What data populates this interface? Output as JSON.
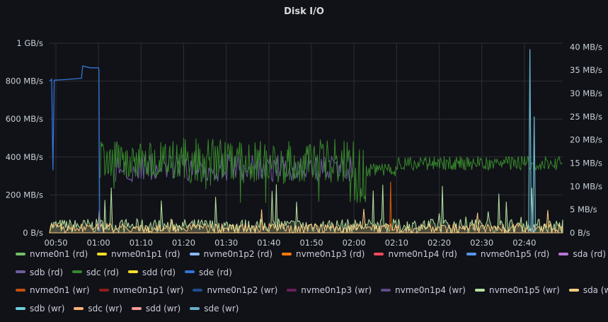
{
  "title": "Disk I/O",
  "chart_data": {
    "type": "line",
    "title": "Disk I/O",
    "x_ticks": [
      "00:50",
      "01:00",
      "01:10",
      "01:20",
      "01:30",
      "01:40",
      "01:50",
      "02:00",
      "02:10",
      "02:20",
      "02:30",
      "02:40"
    ],
    "x_range_minutes": [
      48.5,
      169
    ],
    "y_left": {
      "ticks": [
        "0 B/s",
        "200 MB/s",
        "400 MB/s",
        "600 MB/s",
        "800 MB/s",
        "1 GB/s"
      ],
      "values": [
        0,
        200,
        400,
        600,
        800,
        1000
      ],
      "range": [
        0,
        1000
      ]
    },
    "y_right": {
      "ticks": [
        "0 B/s",
        "5 MB/s",
        "10 MB/s",
        "15 MB/s",
        "20 MB/s",
        "25 MB/s",
        "30 MB/s",
        "35 MB/s",
        "40 MB/s"
      ],
      "values": [
        0,
        5,
        10,
        15,
        20,
        25,
        30,
        35,
        40
      ],
      "range": [
        0,
        40.8
      ]
    },
    "grid": true,
    "legend_position": "bottom",
    "series_shapes": {
      "sde (rd)": {
        "axis": "left",
        "points": [
          [
            48.5,
            800
          ],
          [
            49,
            810
          ],
          [
            49.3,
            330
          ],
          [
            49.6,
            805
          ],
          [
            52,
            808
          ],
          [
            56,
            815
          ],
          [
            56.3,
            880
          ],
          [
            58,
            870
          ],
          [
            60,
            870
          ],
          [
            60.1,
            860
          ],
          [
            60.2,
            330
          ],
          [
            60.3,
            0
          ]
        ]
      },
      "sdc (rd)": {
        "axis": "right",
        "segments": [
          {
            "from": 60.4,
            "to": 80,
            "base": 15.8,
            "amp": 4
          },
          {
            "from": 80,
            "to": 102,
            "base": 15.5,
            "amp": 5
          },
          {
            "from": 102,
            "to": 120,
            "base": 15.2,
            "amp": 5
          },
          {
            "from": 120,
            "to": 123,
            "base": 12,
            "amp": 6
          },
          {
            "from": 123,
            "to": 130,
            "base": 13.5,
            "amp": 1.5
          },
          {
            "from": 130,
            "to": 169,
            "base": 15,
            "amp": 1.5
          }
        ]
      },
      "sdb (rd)": {
        "axis": "right",
        "segments": [
          {
            "from": 64,
            "to": 120,
            "base": 14,
            "amp": 3
          }
        ]
      },
      "nvme0n1p5 (wr)": {
        "axis": "right",
        "segments": [
          {
            "from": 48.5,
            "to": 169,
            "base": 1.5,
            "amp": 1.5
          }
        ]
      },
      "sda (wr)": {
        "axis": "right",
        "segments": [
          {
            "from": 48.5,
            "to": 169,
            "base": 1,
            "amp": 1
          }
        ]
      },
      "nvme0n1 (wr)": {
        "axis": "right",
        "points": [
          [
            128.4,
            0.5
          ],
          [
            128.6,
            11
          ],
          [
            128.8,
            0.5
          ]
        ]
      },
      "sde (wr)": {
        "axis": "right",
        "points": [
          [
            161,
            0.3
          ],
          [
            161.3,
            39.5
          ],
          [
            161.6,
            0.3
          ],
          [
            162,
            0.3
          ],
          [
            162.3,
            25
          ],
          [
            162.6,
            0.3
          ]
        ]
      }
    }
  },
  "legend": {
    "rows": [
      [
        {
          "label": "nvme0n1 (rd)",
          "color": "#73bf69"
        },
        {
          "label": "nvme0n1p1 (rd)",
          "color": "#fade2a"
        },
        {
          "label": "nvme0n1p2 (rd)",
          "color": "#8ab8ff"
        },
        {
          "label": "nvme0n1p3 (rd)",
          "color": "#ff780a"
        },
        {
          "label": "nvme0n1p4 (rd)",
          "color": "#f2495c"
        },
        {
          "label": "nvme0n1p5 (rd)",
          "color": "#5794f2"
        },
        {
          "label": "sda (rd)",
          "color": "#b877d9"
        }
      ],
      [
        {
          "label": "sdb (rd)",
          "color": "#705da0"
        },
        {
          "label": "sdc (rd)",
          "color": "#37872d"
        },
        {
          "label": "sdd (rd)",
          "color": "#fade2a"
        },
        {
          "label": "sde (rd)",
          "color": "#3274d9"
        }
      ],
      [
        {
          "label": "nvme0n1 (wr)",
          "color": "#c4500d"
        },
        {
          "label": "nvme0n1p1 (wr)",
          "color": "#8f1d1d"
        },
        {
          "label": "nvme0n1p2 (wr)",
          "color": "#1f4e8c"
        },
        {
          "label": "nvme0n1p3 (wr)",
          "color": "#6b1f5c"
        },
        {
          "label": "nvme0n1p4 (wr)",
          "color": "#5e4b8a"
        },
        {
          "label": "nvme0n1p5 (wr)",
          "color": "#b4e1a0"
        },
        {
          "label": "sda (wr)",
          "color": "#ffcc80"
        }
      ],
      [
        {
          "label": "sdb (wr)",
          "color": "#6ed0e0"
        },
        {
          "label": "sdc (wr)",
          "color": "#ffb37a"
        },
        {
          "label": "sdd (wr)",
          "color": "#ff9a9a"
        },
        {
          "label": "sde (wr)",
          "color": "#64b0c8"
        }
      ]
    ]
  }
}
